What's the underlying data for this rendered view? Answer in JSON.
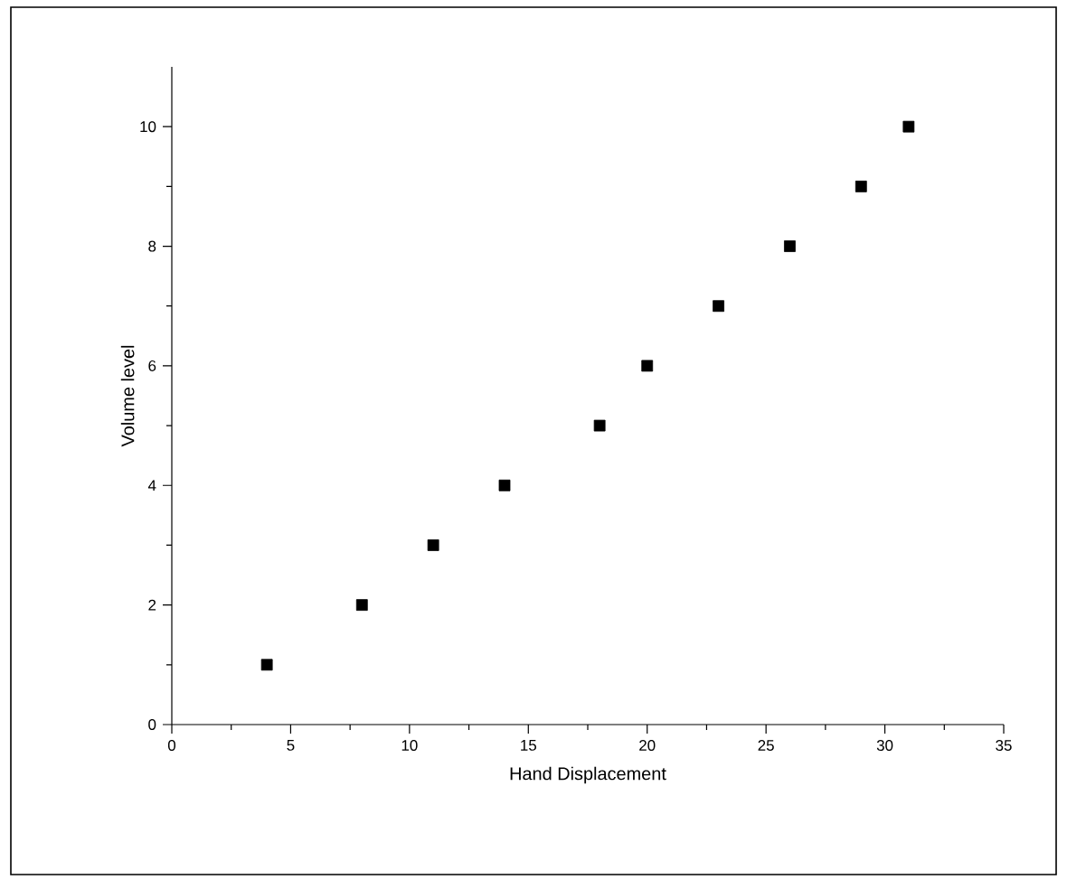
{
  "chart_data": {
    "type": "scatter",
    "xlabel": "Hand Displacement",
    "ylabel": "Volume level",
    "x": [
      4,
      8,
      11,
      14,
      18,
      20,
      23,
      26,
      29,
      31
    ],
    "values": [
      1,
      2,
      3,
      4,
      5,
      6,
      7,
      8,
      9,
      10
    ],
    "color": "#000000",
    "marker": "square",
    "xlim": [
      0,
      35
    ],
    "ylim": [
      0,
      11
    ],
    "xticks": [
      0,
      5,
      10,
      15,
      20,
      25,
      30,
      35
    ],
    "yticks": [
      0,
      2,
      4,
      6,
      8,
      10
    ]
  }
}
